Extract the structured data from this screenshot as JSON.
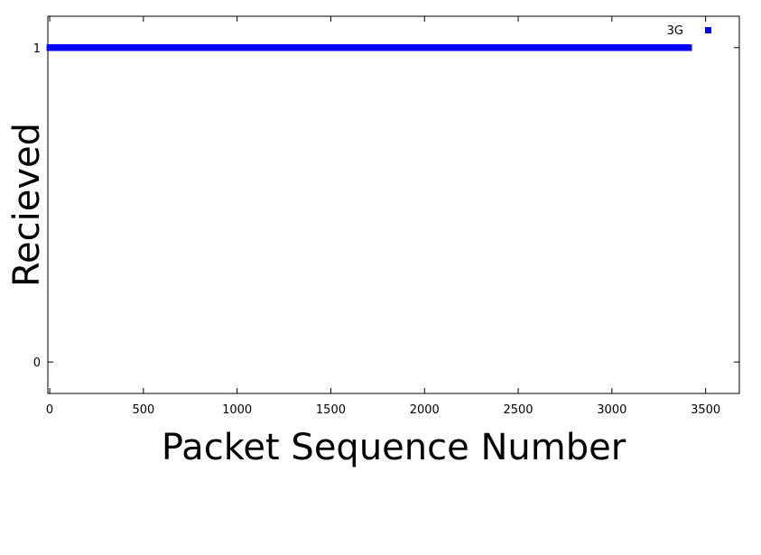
{
  "chart_data": {
    "type": "scatter",
    "xlabel": "Packet Sequence Number",
    "ylabel": "Recieved",
    "xlim": [
      -10,
      3680
    ],
    "ylim": [
      -0.1,
      1.1
    ],
    "xticks": [
      "0",
      "500",
      "1000",
      "1500",
      "2000",
      "2500",
      "3000",
      "3500"
    ],
    "xtick_values": [
      0,
      500,
      1000,
      1500,
      2000,
      2500,
      3000,
      3500
    ],
    "yticks": [
      "0",
      "1"
    ],
    "ytick_values": [
      0,
      1
    ],
    "grid": false,
    "legend_position": "top-right",
    "series": [
      {
        "name": "3G",
        "color": "#0000ff",
        "marker": "square",
        "x_start": 0,
        "x_end": 3410,
        "x_step": 1,
        "y": 1
      }
    ]
  }
}
